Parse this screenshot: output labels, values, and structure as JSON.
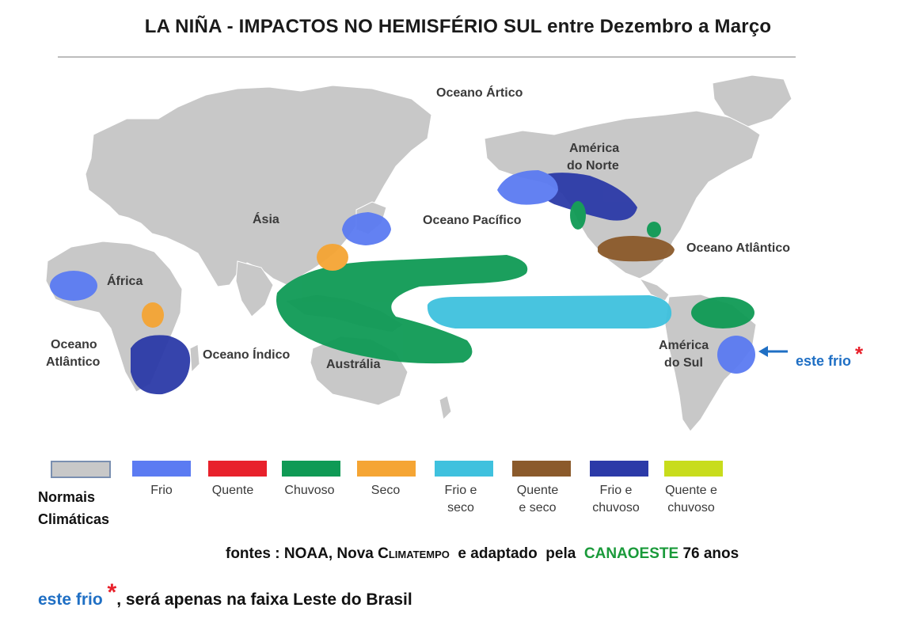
{
  "title": "LA NIÑA - IMPACTOS NO HEMISFÉRIO SUL entre Dezembro a Março",
  "map_labels": {
    "artic": "Oceano Ártico",
    "north_america_1": "América",
    "north_america_2": "do Norte",
    "asia": "Ásia",
    "pacific": "Oceano Pacífico",
    "atlantic_north": "Oceano Atlântico",
    "africa": "África",
    "atlantic_south_1": "Oceano",
    "atlantic_south_2": "Atlântico",
    "indian": "Oceano Índico",
    "australia": "Austrália",
    "south_america_1": "América",
    "south_america_2": "do Sul"
  },
  "callout": {
    "text": "este frio",
    "mark": "*"
  },
  "legend": [
    {
      "label": "Normais Climáticas",
      "color": "#c8c8c8"
    },
    {
      "label": "Frio",
      "color": "#5b7bf2"
    },
    {
      "label": "Quente",
      "color": "#e8212b"
    },
    {
      "label": "Chuvoso",
      "color": "#0f9a55"
    },
    {
      "label": "Seco",
      "color": "#f5a534"
    },
    {
      "label": "Frio e seco",
      "color": "#3fc1de"
    },
    {
      "label": "Quente e seco",
      "color": "#8b5a2b"
    },
    {
      "label": "Frio e chuvoso",
      "color": "#2c3aa8"
    },
    {
      "label": "Quente e chuvoso",
      "color": "#c8dc1c"
    }
  ],
  "sources": {
    "prefix": "fontes : NOAA, Nova ",
    "climatempo": "Climatempo",
    "mid": "  e adaptado  pela  ",
    "canaoeste": "CANAOESTE",
    "suffix": " 76 anos"
  },
  "note": {
    "blue": "este frio ",
    "mark": "*",
    "rest": ", será apenas na faixa Leste do Brasil"
  }
}
